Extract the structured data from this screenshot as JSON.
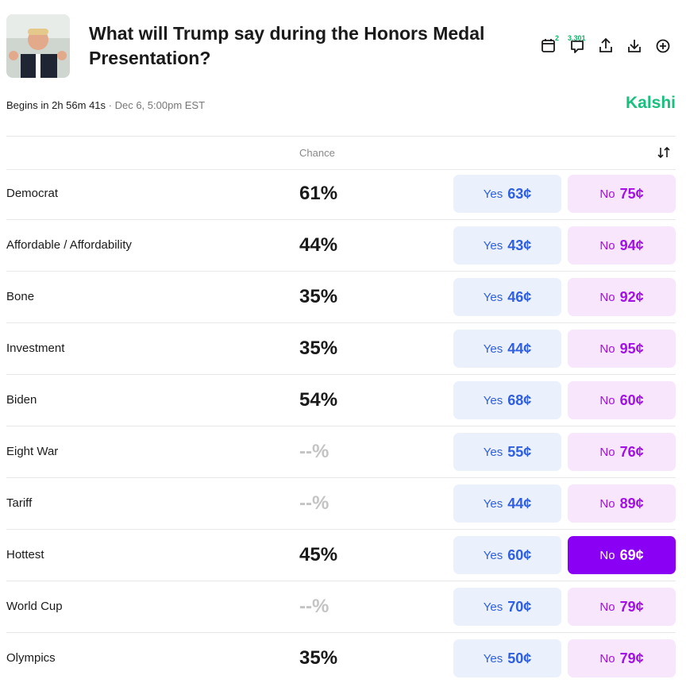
{
  "header": {
    "title": "What will Trump say during the Honors Medal Presentation?",
    "calendar_badge": "2",
    "comments_badge": "3,301",
    "countdown": "Begins in 2h 56m 41s",
    "date": "· Dec 6, 5:00pm EST",
    "brand": "Kalshi"
  },
  "table": {
    "chance_header": "Chance",
    "yes_label": "Yes",
    "no_label": "No",
    "rows": [
      {
        "name": "Democrat",
        "chance": "61%",
        "yes": "63¢",
        "no": "75¢"
      },
      {
        "name": "Affordable / Affordability",
        "chance": "44%",
        "yes": "43¢",
        "no": "94¢"
      },
      {
        "name": "Bone",
        "chance": "35%",
        "yes": "46¢",
        "no": "92¢"
      },
      {
        "name": "Investment",
        "chance": "35%",
        "yes": "44¢",
        "no": "95¢"
      },
      {
        "name": "Biden",
        "chance": "54%",
        "yes": "68¢",
        "no": "60¢"
      },
      {
        "name": "Eight War",
        "chance": "--%",
        "muted": true,
        "yes": "55¢",
        "no": "76¢"
      },
      {
        "name": "Tariff",
        "chance": "--%",
        "muted": true,
        "yes": "44¢",
        "no": "89¢"
      },
      {
        "name": "Hottest",
        "chance": "45%",
        "yes": "60¢",
        "no": "69¢",
        "selected": true
      },
      {
        "name": "World Cup",
        "chance": "--%",
        "muted": true,
        "yes": "70¢",
        "no": "79¢"
      },
      {
        "name": "Olympics",
        "chance": "35%",
        "yes": "50¢",
        "no": "79¢"
      }
    ]
  }
}
